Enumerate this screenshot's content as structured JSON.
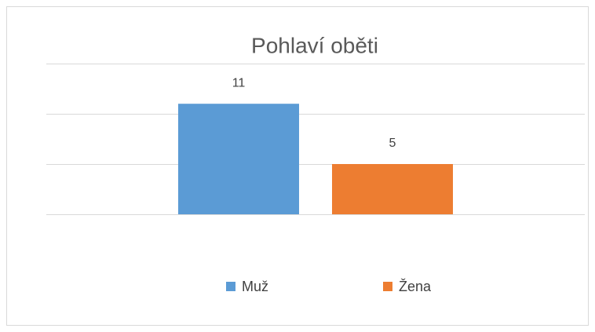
{
  "chart_data": {
    "type": "bar",
    "title": "Pohlaví oběti",
    "categories": [
      null
    ],
    "series": [
      {
        "name": "Muž",
        "color": "#5b9bd5",
        "values": [
          11
        ]
      },
      {
        "name": "Žena",
        "color": "#ed7d31",
        "values": [
          5
        ]
      }
    ],
    "ylim": [
      0,
      15
    ],
    "yticks": [
      0,
      5,
      10,
      15
    ],
    "grid": true,
    "legend": "bottom"
  }
}
